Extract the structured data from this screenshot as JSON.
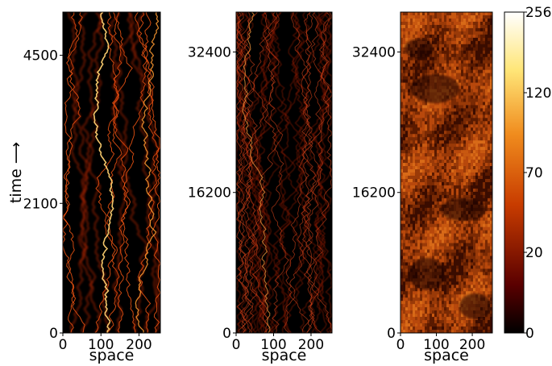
{
  "chart_data": [
    {
      "type": "heatmap",
      "xlabel": "space",
      "ylabel": "time ⟶",
      "xlim": [
        0,
        256
      ],
      "ylim": [
        0,
        5200
      ],
      "xticks": [
        0,
        100,
        200
      ],
      "yticks": [
        0,
        2100,
        4500
      ],
      "colormap": "afmhot",
      "pattern": "few sharp bright wandering trajectories on black background"
    },
    {
      "type": "heatmap",
      "xlabel": "space",
      "ylabel": "",
      "xlim": [
        0,
        256
      ],
      "ylim": [
        0,
        37000
      ],
      "xticks": [
        0,
        100,
        200
      ],
      "yticks": [
        0,
        16200,
        32400
      ],
      "colormap": "afmhot",
      "pattern": "many fainter crossing trajectories on dark background"
    },
    {
      "type": "heatmap",
      "xlabel": "space",
      "ylabel": "",
      "xlim": [
        0,
        256
      ],
      "ylim": [
        0,
        37000
      ],
      "xticks": [
        0,
        100,
        200
      ],
      "yticks": [
        0,
        16200,
        32400
      ],
      "colormap": "afmhot",
      "pattern": "dense diffuse orange texture with darker patches"
    }
  ],
  "colorbar": {
    "ticks": [
      0,
      20,
      70,
      120,
      256
    ],
    "colors": [
      "#000000",
      "#5a0000",
      "#c83c00",
      "#f08c1e",
      "#ffe678",
      "#ffffff"
    ]
  }
}
